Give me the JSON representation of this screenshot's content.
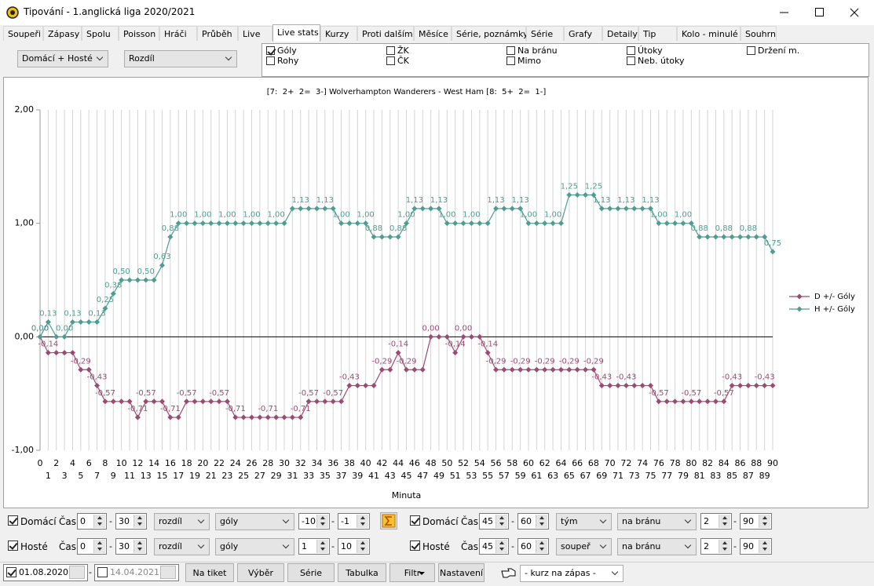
{
  "window": {
    "title": "Tipování - 1.anglická liga 2020/2021"
  },
  "tabs": [
    "Soupeři",
    "Zápasy",
    "Spolu",
    "Poisson",
    "Hráči",
    "Průběh",
    "Live",
    "Live stats",
    "Kurzy",
    "Proti dalším",
    "Měsíce",
    "Série, poznámky",
    "Série",
    "Grafy",
    "Detaily",
    "Tip",
    "Kolo - minulé",
    "Souhrn"
  ],
  "active_tab": "Live stats",
  "filters": {
    "scope": "Domácí + Hosté",
    "mode": "Rozdíl",
    "stats": [
      {
        "label": "Góly",
        "checked": true
      },
      {
        "label": "Rohy",
        "checked": false
      },
      {
        "label": "ŽK",
        "checked": false
      },
      {
        "label": "ČK",
        "checked": false
      },
      {
        "label": "Na bránu",
        "checked": false
      },
      {
        "label": "Mimo",
        "checked": false
      },
      {
        "label": "Útoky",
        "checked": false
      },
      {
        "label": "Neb. útoky",
        "checked": false
      },
      {
        "label": "Držení m.",
        "checked": false
      }
    ]
  },
  "chart_data": {
    "type": "line",
    "title": "[7:  2+  2=  3-] Wolverhampton Wanderers - West Ham [8:  5+  2=  1-]",
    "x_label": "Minuta",
    "x": [
      0,
      1,
      2,
      3,
      4,
      5,
      6,
      7,
      8,
      9,
      10,
      11,
      12,
      13,
      14,
      15,
      16,
      17,
      18,
      19,
      20,
      21,
      22,
      23,
      24,
      25,
      26,
      27,
      28,
      29,
      30,
      31,
      32,
      33,
      34,
      35,
      36,
      37,
      38,
      39,
      40,
      41,
      42,
      43,
      44,
      45,
      46,
      47,
      48,
      49,
      50,
      51,
      52,
      53,
      54,
      55,
      56,
      57,
      58,
      59,
      60,
      61,
      62,
      63,
      64,
      65,
      66,
      67,
      68,
      69,
      70,
      71,
      72,
      73,
      74,
      75,
      76,
      77,
      78,
      79,
      80,
      81,
      82,
      83,
      84,
      85,
      86,
      87,
      88,
      89,
      90
    ],
    "xlim": [
      0,
      90
    ],
    "xticks": [
      0,
      1,
      2,
      3,
      4,
      5,
      6,
      7,
      8,
      9,
      10,
      11,
      12,
      13,
      14,
      15,
      16,
      17,
      18,
      19,
      20,
      21,
      22,
      23,
      24,
      25,
      26,
      27,
      28,
      29,
      30,
      31,
      32,
      33,
      34,
      35,
      36,
      37,
      38,
      39,
      40,
      41,
      42,
      43,
      44,
      45,
      46,
      47,
      48,
      49,
      50,
      51,
      52,
      53,
      54,
      55,
      56,
      57,
      58,
      59,
      60,
      61,
      62,
      63,
      64,
      65,
      66,
      67,
      68,
      69,
      70,
      71,
      72,
      73,
      74,
      75,
      76,
      77,
      78,
      79,
      80,
      81,
      82,
      83,
      84,
      85,
      86,
      87,
      88,
      89,
      90
    ],
    "ylim": [
      -1,
      2
    ],
    "yticks": [
      {
        "value": -1,
        "label": "-1,00"
      },
      {
        "value": 0,
        "label": "0,00"
      },
      {
        "value": 1,
        "label": "1,00"
      },
      {
        "value": 2,
        "label": "2,00"
      }
    ],
    "grid": "x",
    "legend": "right",
    "series": [
      {
        "name": "D +/- Góly",
        "color": "#9c4a72",
        "values": [
          0,
          -0.14,
          -0.14,
          -0.14,
          -0.14,
          -0.29,
          -0.29,
          -0.43,
          -0.57,
          -0.57,
          -0.57,
          -0.57,
          -0.71,
          -0.57,
          -0.57,
          -0.57,
          -0.71,
          -0.71,
          -0.57,
          -0.57,
          -0.57,
          -0.57,
          -0.57,
          -0.57,
          -0.71,
          -0.71,
          -0.71,
          -0.71,
          -0.71,
          -0.71,
          -0.71,
          -0.71,
          -0.71,
          -0.57,
          -0.57,
          -0.57,
          -0.57,
          -0.57,
          -0.43,
          -0.43,
          -0.43,
          -0.43,
          -0.29,
          -0.29,
          -0.14,
          -0.29,
          -0.29,
          -0.29,
          0,
          0,
          0,
          -0.14,
          0,
          0,
          0,
          -0.14,
          -0.29,
          -0.29,
          -0.29,
          -0.29,
          -0.29,
          -0.29,
          -0.29,
          -0.29,
          -0.29,
          -0.29,
          -0.29,
          -0.29,
          -0.29,
          -0.43,
          -0.43,
          -0.43,
          -0.43,
          -0.43,
          -0.43,
          -0.43,
          -0.57,
          -0.57,
          -0.57,
          -0.57,
          -0.57,
          -0.57,
          -0.57,
          -0.57,
          -0.57,
          -0.43,
          -0.43,
          -0.43,
          -0.43,
          -0.43,
          -0.43
        ],
        "value_labels": [
          "0,00",
          "-0,14",
          null,
          null,
          null,
          "-0,29",
          null,
          "-0,43",
          "-0,57",
          null,
          null,
          null,
          "-0,71",
          "-0,57",
          null,
          null,
          "-0,71",
          null,
          "-0,57",
          null,
          null,
          null,
          "-0,57",
          null,
          "-0,71",
          null,
          null,
          null,
          "-0,71",
          null,
          null,
          null,
          "-0,71",
          "-0,57",
          null,
          null,
          "-0,57",
          null,
          "-0,43",
          null,
          null,
          null,
          "-0,29",
          null,
          "-0,14",
          "-0,29",
          null,
          null,
          "0,00",
          null,
          null,
          "-0,14",
          "0,00",
          null,
          null,
          "-0,14",
          "-0,29",
          null,
          null,
          "-0,29",
          null,
          null,
          "-0,29",
          null,
          null,
          "-0,29",
          null,
          null,
          "-0,29",
          "-0,43",
          null,
          null,
          "-0,43",
          null,
          null,
          null,
          "-0,57",
          null,
          null,
          null,
          "-0,57",
          null,
          null,
          null,
          "-0,57",
          "-0,43",
          null,
          null,
          null,
          "-0,43",
          null
        ]
      },
      {
        "name": "H +/- Góly",
        "color": "#4f9d90",
        "values": [
          0,
          0.13,
          0,
          0,
          0.13,
          0.13,
          0.13,
          0.13,
          0.25,
          0.38,
          0.5,
          0.5,
          0.5,
          0.5,
          0.5,
          0.63,
          0.88,
          1,
          1,
          1,
          1,
          1,
          1,
          1,
          1,
          1,
          1,
          1,
          1,
          1,
          1,
          1.13,
          1.13,
          1.13,
          1.13,
          1.13,
          1.13,
          1,
          1,
          1,
          1,
          0.88,
          0.88,
          0.88,
          0.88,
          1,
          1.13,
          1.13,
          1.13,
          1.13,
          1,
          1,
          1,
          1,
          1,
          1,
          1.13,
          1.13,
          1.13,
          1.13,
          1,
          1,
          1,
          1,
          1,
          1.25,
          1.25,
          1.25,
          1.25,
          1.13,
          1.13,
          1.13,
          1.13,
          1.13,
          1.13,
          1.13,
          1,
          1,
          1,
          1,
          1,
          0.88,
          0.88,
          0.88,
          0.88,
          0.88,
          0.88,
          0.88,
          0.88,
          0.88,
          0.75
        ],
        "value_labels": [
          "0,00",
          "0,13",
          null,
          "0,00",
          "0,13",
          null,
          null,
          "0,13",
          "0,25",
          "0,38",
          "0,50",
          null,
          null,
          "0,50",
          null,
          "0,63",
          "0,88",
          "1,00",
          null,
          null,
          "1,00",
          null,
          null,
          "1,00",
          null,
          null,
          "1,00",
          null,
          null,
          "1,00",
          null,
          null,
          "1,13",
          null,
          null,
          "1,13",
          null,
          "1,00",
          null,
          null,
          "1,00",
          "0,88",
          null,
          null,
          "0,88",
          "1,00",
          "1,13",
          null,
          null,
          "1,13",
          "1,00",
          null,
          null,
          "1,00",
          null,
          null,
          "1,13",
          null,
          null,
          "1,13",
          "1,00",
          null,
          null,
          "1,00",
          null,
          "1,25",
          null,
          null,
          "1,25",
          "1,13",
          null,
          null,
          "1,13",
          null,
          null,
          "1,13",
          "1,00",
          null,
          null,
          "1,00",
          null,
          "0,88",
          null,
          null,
          "0,88",
          null,
          null,
          "0,88",
          null,
          null,
          "0,75"
        ]
      }
    ]
  },
  "controls": [
    {
      "left": {
        "team": "Domácí",
        "checked": true,
        "time_label": "Čas",
        "from": "0",
        "to": "30",
        "measure": "rozdíl",
        "stat": "góly",
        "min": "-10",
        "max": "-1"
      },
      "right": {
        "team": "Domácí",
        "checked": true,
        "time_label": "Čas",
        "from": "45",
        "to": "60",
        "measure": "tým",
        "stat": "na bránu",
        "min": "2",
        "max": "90"
      }
    },
    {
      "left": {
        "team": "Hosté",
        "checked": true,
        "time_label": "Čas",
        "from": "0",
        "to": "30",
        "measure": "rozdíl",
        "stat": "góly",
        "min": "1",
        "max": "10"
      },
      "right": {
        "team": "Hosté",
        "checked": true,
        "time_label": "Čas",
        "from": "45",
        "to": "60",
        "measure": "soupeř",
        "stat": "na bránu",
        "min": "2",
        "max": "90"
      }
    }
  ],
  "footer": {
    "date_from": "01.08.2020",
    "date_from_checked": true,
    "date_to": "14.04.2021",
    "date_to_checked": false,
    "buttons": [
      "Na tiket",
      "Výběr",
      "Série",
      "Tabulka",
      "Filtr",
      "Nastavení"
    ],
    "odds": "- kurz na zápas -"
  }
}
